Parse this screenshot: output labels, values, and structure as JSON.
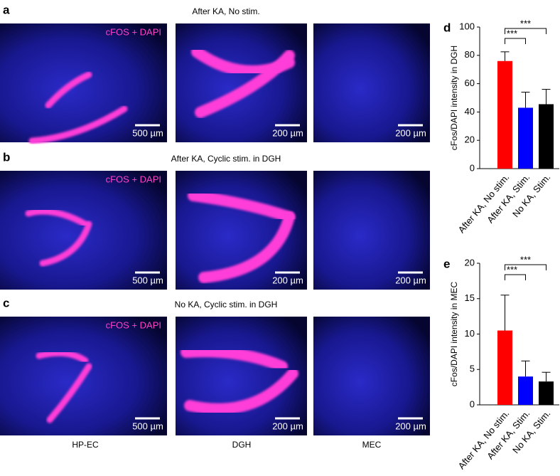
{
  "rows": [
    {
      "label": "a",
      "title": "After KA, No stim.",
      "stain": "cFOS + DAPI",
      "scale_bars": [
        "500 µm",
        "200 µm",
        "200 µm"
      ]
    },
    {
      "label": "b",
      "title": "After KA, Cyclic stim. in DGH",
      "stain": "cFOS + DAPI",
      "scale_bars": [
        "500 µm",
        "200 µm",
        "200 µm"
      ]
    },
    {
      "label": "c",
      "title": "No KA, Cyclic stim. in DGH",
      "stain": "cFOS + DAPI",
      "scale_bars": [
        "500 µm",
        "200 µm",
        "200 µm"
      ]
    }
  ],
  "column_labels": [
    "HP-EC",
    "DGH",
    "MEC"
  ],
  "chart_data": [
    {
      "type": "bar",
      "panel_label": "d",
      "ylabel": "cFos/DAPI intensity in DGH",
      "categories": [
        "After KA, No stim.",
        "After KA, Stim.",
        "No KA, Stim."
      ],
      "values": [
        76,
        43,
        45.5
      ],
      "errors": [
        6.5,
        11,
        10.5
      ],
      "colors": [
        "#ff0000",
        "#0000ff",
        "#000000"
      ],
      "ylim": [
        0,
        100
      ],
      "yticks": [
        0,
        20,
        40,
        60,
        80,
        100
      ],
      "significance": [
        "***",
        "***"
      ]
    },
    {
      "type": "bar",
      "panel_label": "e",
      "ylabel": "cFos/DAPI intensity in MEC",
      "categories": [
        "After KA, No stim.",
        "After KA, Stim.",
        "No KA, Stim."
      ],
      "values": [
        10.5,
        4,
        3.3
      ],
      "errors": [
        5,
        2.2,
        1.3
      ],
      "colors": [
        "#ff0000",
        "#0000ff",
        "#000000"
      ],
      "ylim": [
        0,
        20
      ],
      "yticks": [
        0,
        5,
        10,
        15,
        20
      ],
      "significance": [
        "***",
        "***"
      ]
    }
  ]
}
